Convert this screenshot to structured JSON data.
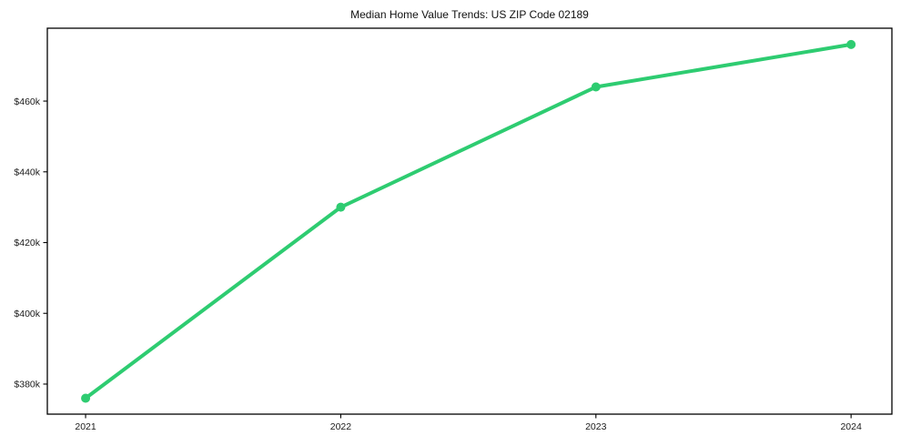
{
  "page": {
    "background_color": "#ffffff"
  },
  "chart_data": {
    "type": "line",
    "title": "Median Home Value Trends: US ZIP Code 02189",
    "xlabel": "",
    "ylabel": "",
    "x": [
      2021,
      2022,
      2023,
      2024
    ],
    "series": [
      {
        "name": "Median Home Value",
        "values": [
          376000,
          430000,
          464000,
          476000
        ],
        "color": "#2ecc71",
        "marker": "circle"
      }
    ],
    "xticks": {
      "values": [
        2021,
        2022,
        2023,
        2024
      ],
      "labels": [
        "2021",
        "2022",
        "2023",
        "2024"
      ]
    },
    "yticks": {
      "values": [
        380000,
        400000,
        420000,
        440000,
        460000
      ],
      "labels": [
        "$380k",
        "$400k",
        "$420k",
        "$440k",
        "$460k"
      ]
    },
    "xlim": [
      2020.85,
      2024.16
    ],
    "ylim": [
      371500,
      480600
    ],
    "grid": false,
    "legend_position": "none",
    "axis_color": "#000000",
    "text_color": "#1a1a1a",
    "line_width": 4,
    "marker_radius": 5
  }
}
